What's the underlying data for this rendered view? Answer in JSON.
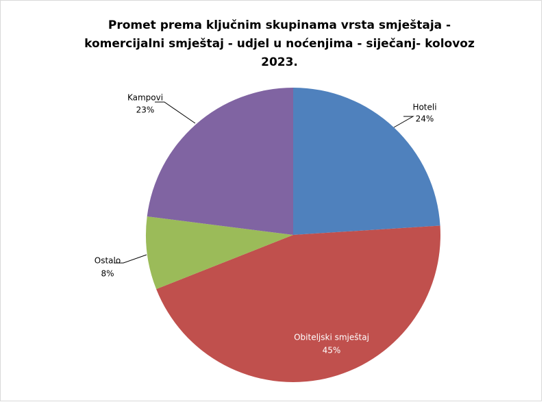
{
  "chart_data": {
    "type": "pie",
    "title": "Promet prema ključnim skupinama vrsta smještaja - komercijalni smještaj - udjel u noćenjima - siječanj- kolovoz 2023.",
    "categories": [
      "Hoteli",
      "Obiteljski smještaj",
      "Ostalo",
      "Kampovi"
    ],
    "values": [
      24,
      45,
      8,
      23
    ],
    "value_labels": [
      "24%",
      "45%",
      "8%",
      "23%"
    ],
    "colors": [
      "#4f81bd",
      "#c0504d",
      "#9bbb59",
      "#8064a2"
    ]
  }
}
